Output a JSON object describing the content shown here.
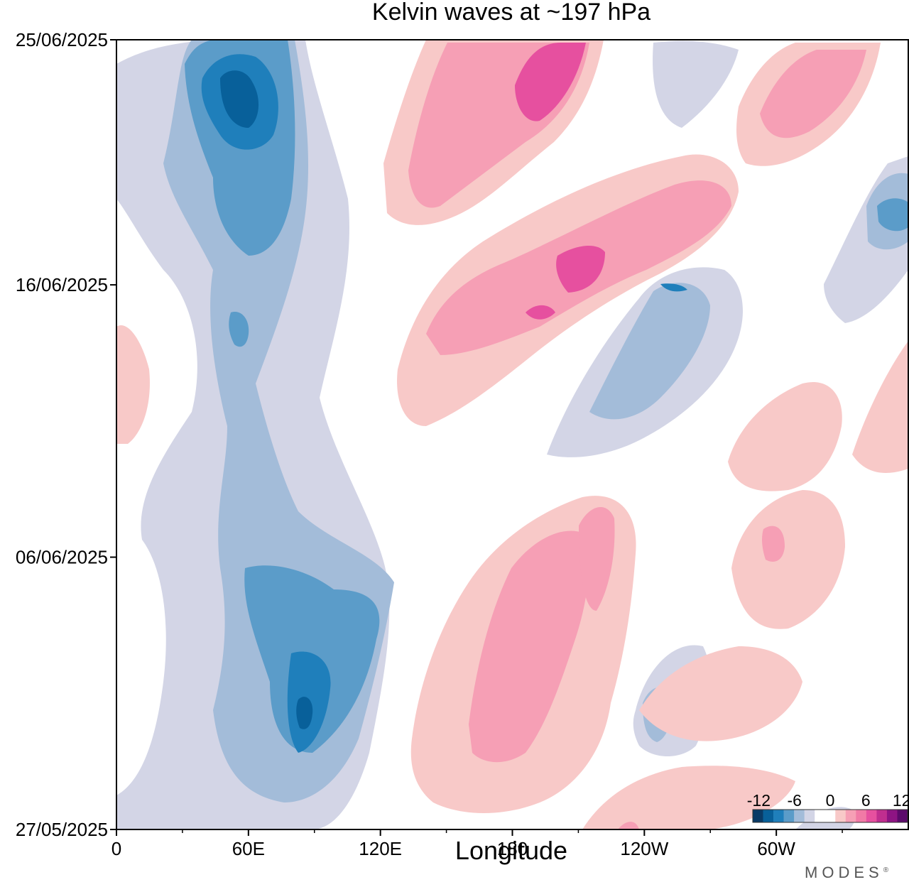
{
  "chart_data": {
    "type": "heatmap",
    "title": "Kelvin waves at ~197 hPa",
    "xlabel": "Longitude",
    "ylabel": "",
    "x_ticks": [
      "0",
      "60E",
      "120E",
      "180",
      "120W",
      "60W"
    ],
    "x_tick_values": [
      0,
      60,
      120,
      180,
      240,
      300
    ],
    "xlim": [
      0,
      360
    ],
    "y_ticks": [
      "25/06/2025",
      "16/06/2025",
      "06/06/2025",
      "27/05/2025"
    ],
    "y_tick_dates": [
      "2025-06-25",
      "2025-06-16",
      "2025-06-06",
      "2025-05-27"
    ],
    "ylim": [
      "2025-05-27",
      "2025-06-25"
    ],
    "colorbar": {
      "labels": [
        "-12",
        "-6",
        "0",
        "6",
        "12"
      ],
      "label_values": [
        -12,
        -6,
        0,
        6,
        12
      ],
      "colors": [
        "#0a3a66",
        "#08609a",
        "#1f7fbb",
        "#5b9cc9",
        "#a3bcd9",
        "#d3d5e6",
        "#ffffff",
        "#ffffff",
        "#f8c9c8",
        "#f69fb5",
        "#f17aa6",
        "#e6509f",
        "#c02e8f",
        "#8e1483",
        "#5c0a6b"
      ]
    },
    "negative_anomaly_bands": [
      {
        "lon_center": [
          45,
          60,
          90,
          100,
          115,
          150,
          200,
          240
        ],
        "date_start": "2025-06-25",
        "date_end": "2025-05-27",
        "note_value": -9
      },
      {
        "lon_center": [
          245,
          270
        ],
        "date_start": "2025-06-15",
        "date_end": "2025-06-09",
        "note_value": -5
      }
    ],
    "positive_anomaly_bands": [
      {
        "lon_range": [
          125,
          225
        ],
        "date_start": "2025-06-25",
        "date_end": "2025-06-19",
        "peak_value": 9
      },
      {
        "lon_range": [
          130,
          290
        ],
        "date_start": "2025-06-21",
        "date_end": "2025-06-08",
        "peak_value": 8
      },
      {
        "lon_range": [
          130,
          250
        ],
        "date_start": "2025-06-08",
        "date_end": "2025-05-27",
        "peak_value": 6
      }
    ]
  },
  "branding": {
    "name": "MODES",
    "mark": "®"
  }
}
